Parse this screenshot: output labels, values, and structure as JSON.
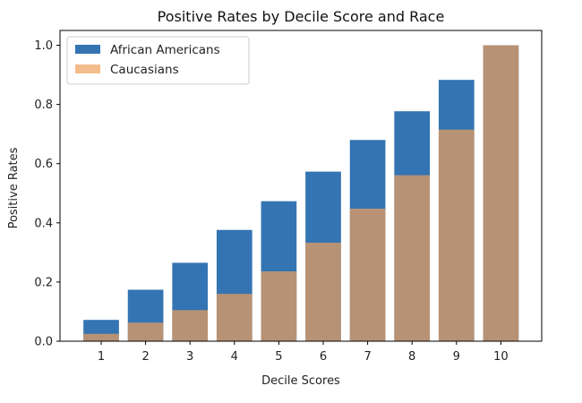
{
  "chart_data": {
    "type": "bar",
    "title": "Positive Rates by Decile Score and Race",
    "xlabel": "Decile Scores",
    "ylabel": "Positive Rates",
    "categories": [
      "1",
      "2",
      "3",
      "4",
      "5",
      "6",
      "7",
      "8",
      "9",
      "10"
    ],
    "yticks": [
      "0.0",
      "0.2",
      "0.4",
      "0.6",
      "0.8",
      "1.0"
    ],
    "ylim": [
      0,
      1.05
    ],
    "grid": false,
    "legend_position": "top-left",
    "overlay": true,
    "series": [
      {
        "name": "African Americans",
        "color": "#3474b3",
        "values": [
          0.072,
          0.174,
          0.265,
          0.376,
          0.473,
          0.573,
          0.68,
          0.777,
          0.883,
          1.0
        ]
      },
      {
        "name": "Caucasians",
        "color": "#f0a05a",
        "opacity": 0.7,
        "values": [
          0.025,
          0.063,
          0.105,
          0.16,
          0.236,
          0.333,
          0.448,
          0.561,
          0.715,
          1.0
        ]
      }
    ]
  }
}
